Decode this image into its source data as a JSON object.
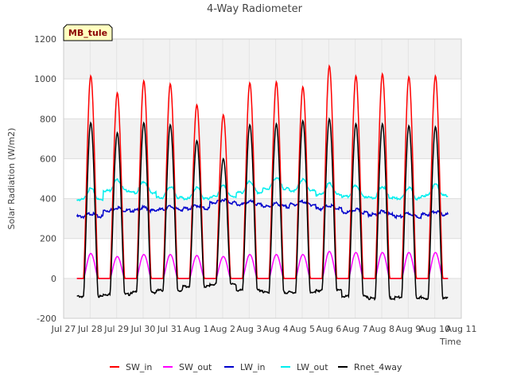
{
  "chart_data": {
    "type": "line",
    "title": "4-Way Radiometer",
    "site_label": "MB_tule",
    "xlabel": "Time",
    "ylabel": "Solar Radiation (W/m2)",
    "ylim": [
      -200,
      1200
    ],
    "yticks": [
      -200,
      0,
      200,
      400,
      600,
      800,
      1000,
      1200
    ],
    "xlim": [
      0,
      15
    ],
    "xticks": [
      {
        "x": 0,
        "label": "Jul 27"
      },
      {
        "x": 1,
        "label": "Jul 28"
      },
      {
        "x": 2,
        "label": "Jul 29"
      },
      {
        "x": 3,
        "label": "Jul 30"
      },
      {
        "x": 4,
        "label": "Jul 31"
      },
      {
        "x": 5,
        "label": "Aug 1"
      },
      {
        "x": 6,
        "label": "Aug 2"
      },
      {
        "x": 7,
        "label": "Aug 3"
      },
      {
        "x": 8,
        "label": "Aug 4"
      },
      {
        "x": 9,
        "label": "Aug 5"
      },
      {
        "x": 10,
        "label": "Aug 6"
      },
      {
        "x": 11,
        "label": "Aug 7"
      },
      {
        "x": 12,
        "label": "Aug 8"
      },
      {
        "x": 13,
        "label": "Aug 9"
      },
      {
        "x": 14,
        "label": "Aug 10"
      },
      {
        "x": 15,
        "label": "Aug 11"
      }
    ],
    "grid": true,
    "legend_position": "bottom",
    "series": [
      {
        "name": "SW_in",
        "color": "#ff0000"
      },
      {
        "name": "SW_out",
        "color": "#ff00ff"
      },
      {
        "name": "LW_in",
        "color": "#0000cc"
      },
      {
        "name": "LW_out",
        "color": "#00eeee"
      },
      {
        "name": "Rnet_4way",
        "color": "#000000"
      }
    ],
    "daily_peaks": {
      "SW_in": [
        1015,
        930,
        990,
        975,
        870,
        820,
        980,
        985,
        960,
        1065,
        1015,
        1025,
        1010,
        1015
      ],
      "SW_out": [
        125,
        110,
        120,
        120,
        115,
        110,
        120,
        120,
        120,
        135,
        130,
        130,
        130,
        130
      ],
      "Rnet_4way": [
        780,
        730,
        780,
        770,
        690,
        600,
        770,
        775,
        790,
        800,
        775,
        775,
        765,
        760
      ]
    },
    "daily_mean": {
      "LW_in": [
        310,
        340,
        340,
        345,
        350,
        380,
        370,
        360,
        370,
        350,
        330,
        320,
        310,
        320
      ],
      "LW_out": [
        395,
        440,
        430,
        405,
        400,
        410,
        430,
        450,
        440,
        420,
        410,
        405,
        400,
        415
      ]
    },
    "night_values": {
      "SW_in": 0,
      "SW_out": 0,
      "Rnet_4way": [
        -90,
        -80,
        -70,
        -60,
        -40,
        -30,
        -60,
        -70,
        -70,
        -60,
        -90,
        -100,
        -95,
        -100
      ]
    }
  }
}
